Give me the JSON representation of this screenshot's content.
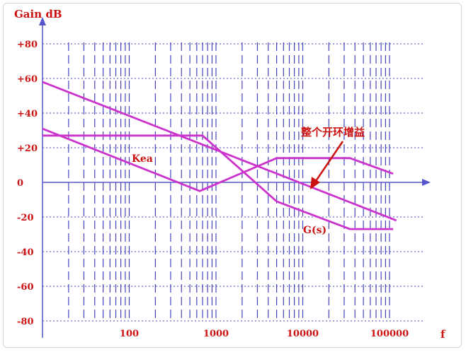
{
  "chart_data": {
    "type": "line",
    "ylabel": "Gain dB",
    "xlabel": "f",
    "xscale": "log",
    "xlim": [
      10,
      120000
    ],
    "ylim": [
      -85,
      85
    ],
    "x_ticks": [
      100,
      1000,
      10000,
      100000
    ],
    "x_tick_labels": [
      "100",
      "1000",
      "10000",
      "100000"
    ],
    "y_ticks": [
      80,
      60,
      40,
      20,
      0,
      -20,
      -40,
      -60,
      -80
    ],
    "y_tick_labels": [
      "+80",
      "+60",
      "+40",
      "+20",
      "0",
      "-20",
      "-40",
      "-60",
      "-80"
    ],
    "grid": true,
    "series": [
      {
        "id": "top-line",
        "color": "#cc33cc",
        "points": [
          [
            10,
            58
          ],
          [
            120000,
            -22
          ]
        ]
      },
      {
        "id": "kea",
        "color": "#cc33cc",
        "points": [
          [
            10,
            27
          ],
          [
            700,
            27
          ],
          [
            5000,
            -11
          ],
          [
            35000,
            -27
          ],
          [
            110000,
            -27
          ]
        ]
      },
      {
        "id": "lower-v",
        "color": "#cc33cc",
        "points": [
          [
            10,
            31
          ],
          [
            650,
            -5
          ],
          [
            5000,
            14
          ],
          [
            35000,
            14
          ],
          [
            110000,
            5
          ]
        ]
      }
    ],
    "annotations": [
      {
        "id": "kea-label",
        "text": "Kea"
      },
      {
        "id": "gs-label",
        "text": "G(s)"
      },
      {
        "id": "open-loop-label",
        "text": "整个开环增益"
      }
    ],
    "colors": {
      "axis": "#5555cc",
      "grid": "#4444bb",
      "text": "#cc1111",
      "curve": "#cc33cc",
      "arrow": "#cc1111"
    }
  }
}
